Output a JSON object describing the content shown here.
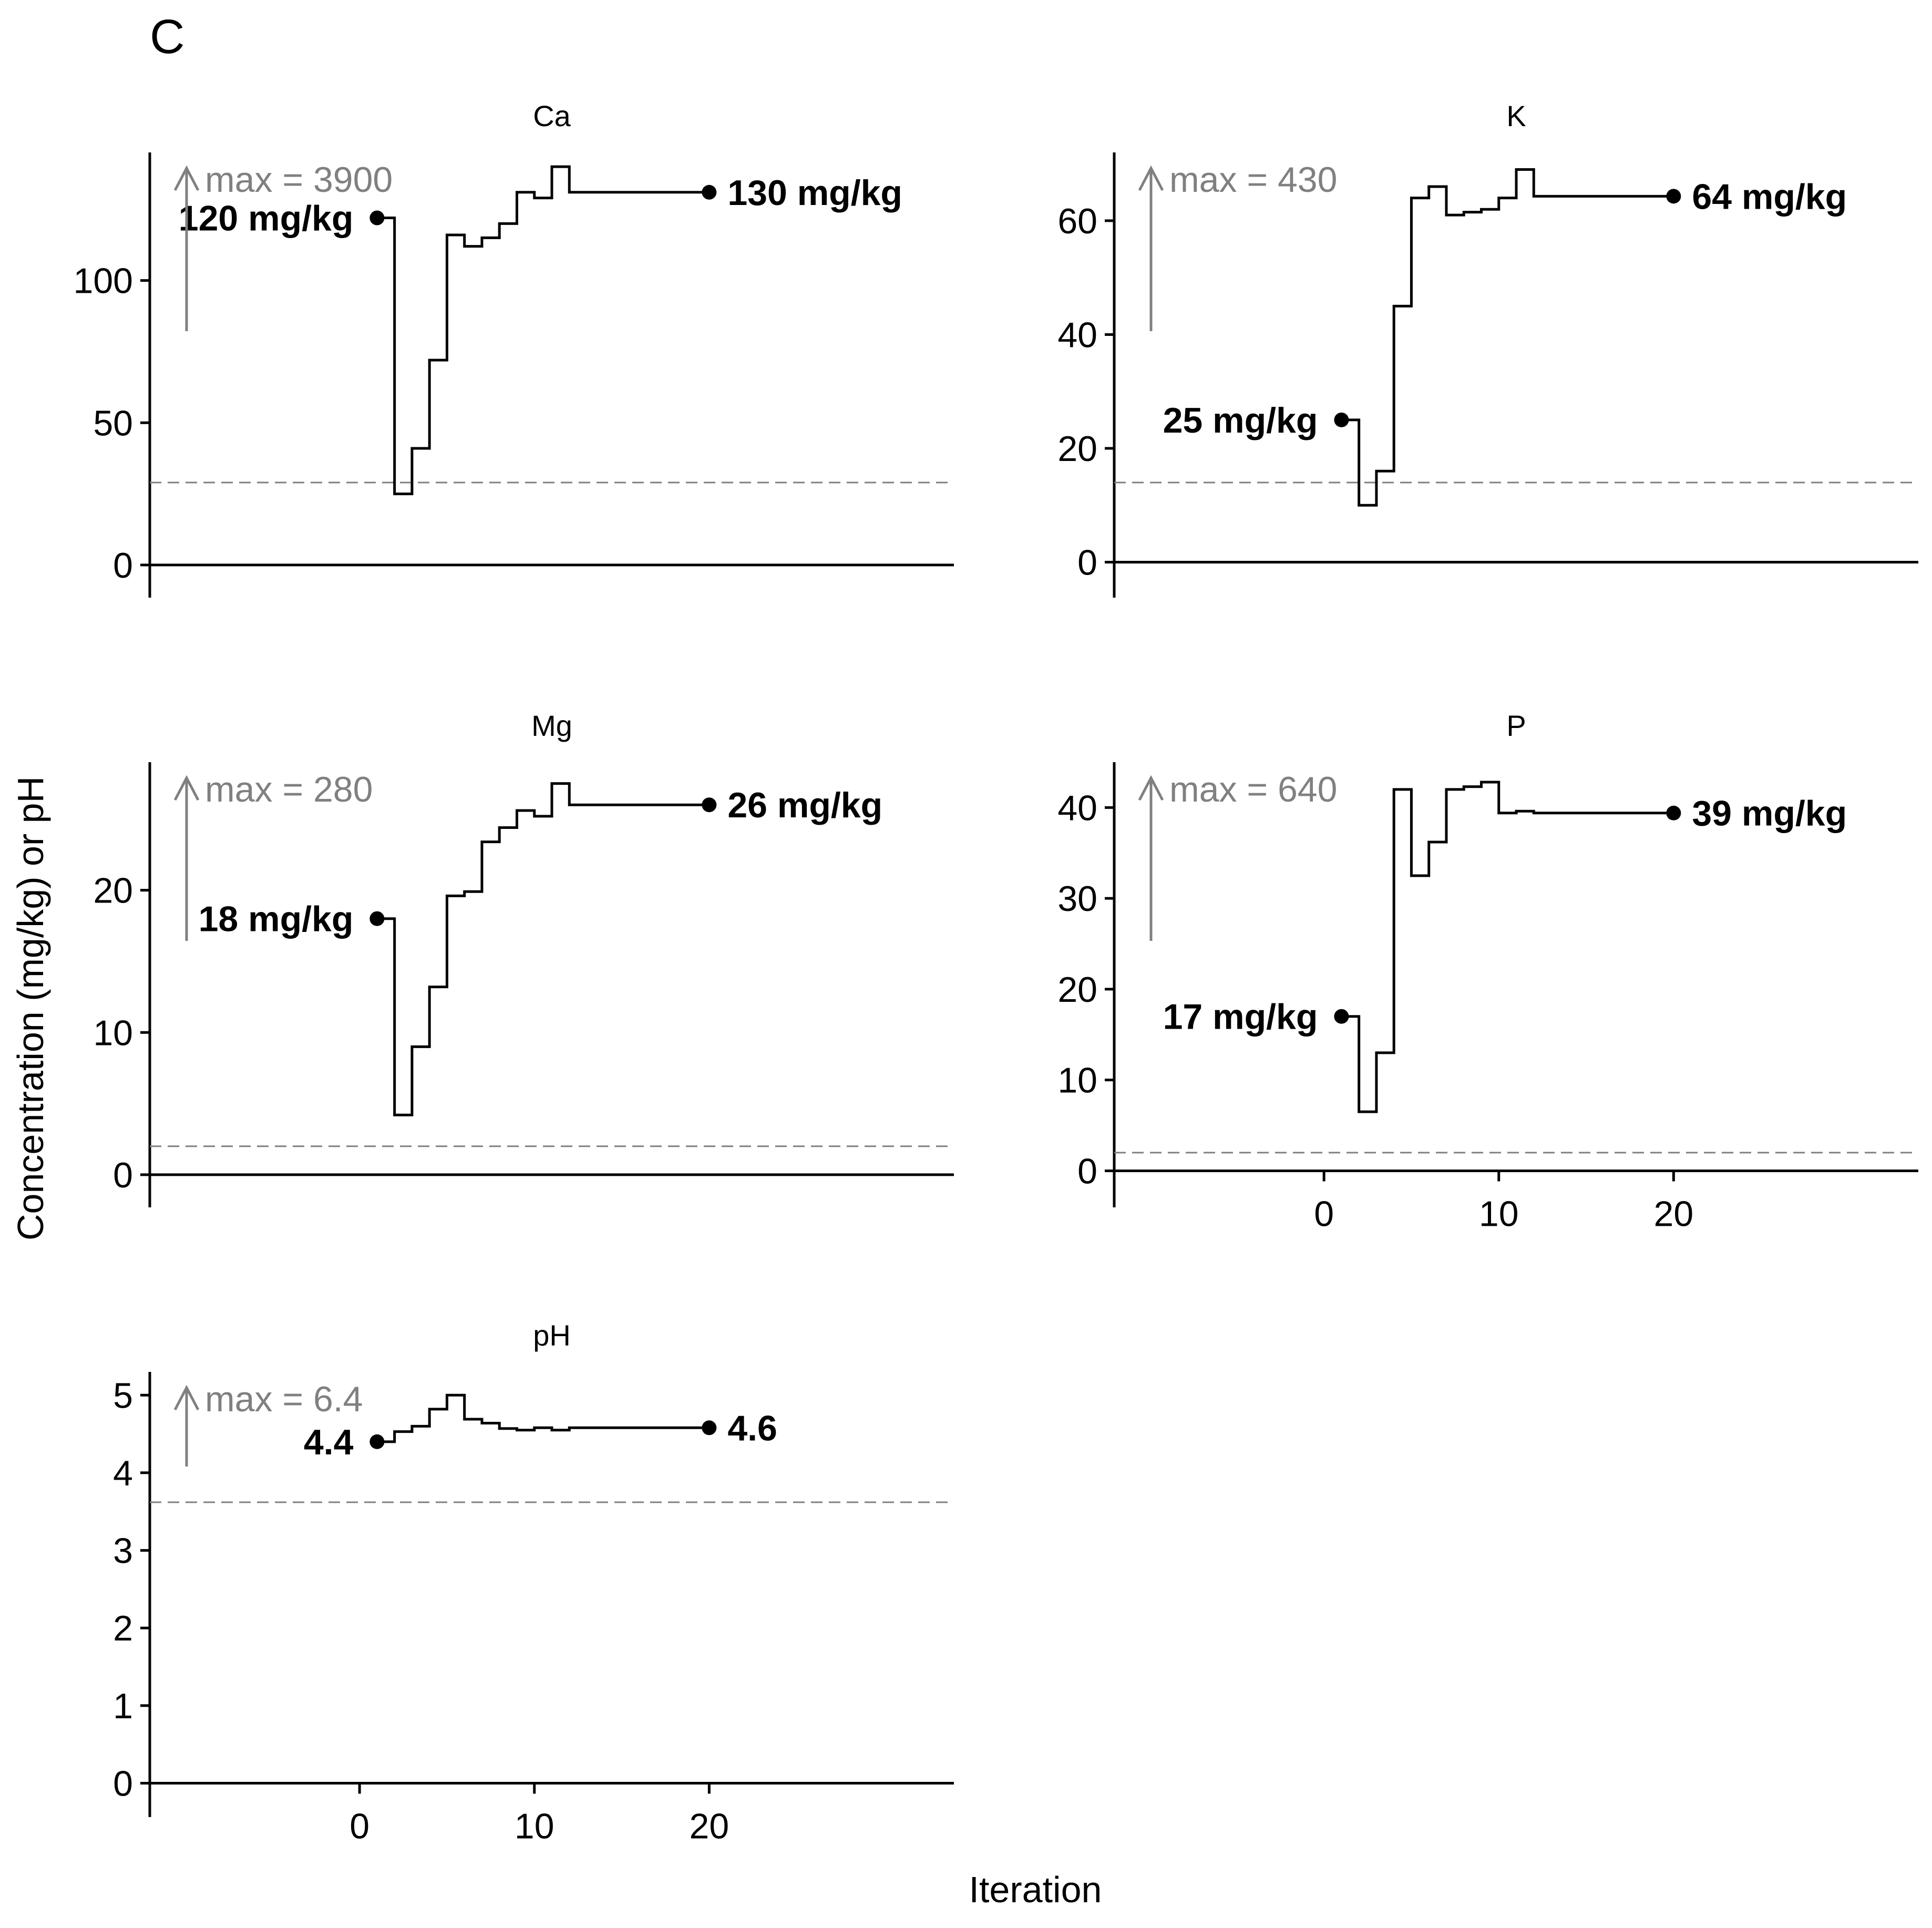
{
  "figure": {
    "panel_tag": "C",
    "ylabel": "Concentration (mg/kg) or pH",
    "xlabel": "Iteration"
  },
  "colors": {
    "line": "#000000",
    "annotation": "#808080",
    "reference": "#808080"
  },
  "chart_data": [
    {
      "type": "line",
      "step": true,
      "title": "Ca",
      "ylim": [
        -5,
        145
      ],
      "yticks": [
        0,
        50,
        100
      ],
      "xticks": [],
      "xlim": [
        -12,
        34
      ],
      "reference_line": 29,
      "max_annotation": "max = 3900",
      "x": [
        1,
        2,
        3,
        4,
        5,
        6,
        7,
        8,
        9,
        10,
        11,
        12,
        13,
        14,
        15,
        16,
        17,
        18,
        19,
        20
      ],
      "y": [
        122,
        25,
        41,
        72,
        116,
        112,
        115,
        120,
        131,
        129,
        140,
        131,
        131,
        131,
        131,
        131,
        131,
        131,
        131,
        131
      ],
      "start_label": "120 mg/kg",
      "end_label": "130 mg/kg"
    },
    {
      "type": "line",
      "step": true,
      "title": "K",
      "ylim": [
        -3,
        72
      ],
      "yticks": [
        0,
        20,
        40,
        60
      ],
      "xticks": [],
      "xlim": [
        -12,
        34
      ],
      "reference_line": 14,
      "max_annotation": "max = 430",
      "x": [
        1,
        2,
        3,
        4,
        5,
        6,
        7,
        8,
        9,
        10,
        11,
        12,
        13,
        14,
        15,
        16,
        17,
        18,
        19,
        20
      ],
      "y": [
        25,
        10,
        16,
        45,
        64,
        66,
        61,
        61.5,
        62,
        64,
        69,
        64.3,
        64.3,
        64.3,
        64.3,
        64.3,
        64.3,
        64.3,
        64.3,
        64.3
      ],
      "start_label": "25 mg/kg",
      "end_label": "64 mg/kg"
    },
    {
      "type": "line",
      "step": true,
      "title": "Mg",
      "ylim": [
        -1,
        29
      ],
      "yticks": [
        0,
        10,
        20
      ],
      "xticks": [],
      "xlim": [
        -12,
        34
      ],
      "reference_line": 2,
      "max_annotation": "max = 280",
      "x": [
        1,
        2,
        3,
        4,
        5,
        6,
        7,
        8,
        9,
        10,
        11,
        12,
        13,
        14,
        15,
        16,
        17,
        18,
        19,
        20
      ],
      "y": [
        18,
        4.2,
        9,
        13.2,
        19.6,
        19.9,
        23.4,
        24.4,
        25.6,
        25.2,
        27.5,
        26,
        26,
        26,
        26,
        26,
        26,
        26,
        26,
        26
      ],
      "start_label": "18 mg/kg",
      "end_label": "26 mg/kg"
    },
    {
      "type": "line",
      "step": true,
      "title": "P",
      "ylim": [
        -2,
        45
      ],
      "yticks": [
        0,
        10,
        20,
        30,
        40
      ],
      "xticks": [
        0,
        10,
        20
      ],
      "xlim": [
        -12,
        34
      ],
      "reference_line": 2,
      "max_annotation": "max = 640",
      "x": [
        1,
        2,
        3,
        4,
        5,
        6,
        7,
        8,
        9,
        10,
        11,
        12,
        13,
        14,
        15,
        16,
        17,
        18,
        19,
        20
      ],
      "y": [
        17,
        6.5,
        13,
        42,
        32.5,
        36.2,
        42,
        42.3,
        42.8,
        39.4,
        39.6,
        39.4,
        39.4,
        39.4,
        39.4,
        39.4,
        39.4,
        39.4,
        39.4,
        39.4
      ],
      "start_label": "17 mg/kg",
      "end_label": "39 mg/kg"
    },
    {
      "type": "line",
      "step": true,
      "title": "pH",
      "ylim": [
        -0.2,
        5.3
      ],
      "yticks": [
        0,
        1,
        2,
        3,
        4,
        5
      ],
      "xticks": [
        0,
        10,
        20
      ],
      "xlim": [
        -12,
        34
      ],
      "reference_line": 3.62,
      "max_annotation": "max = 6.4",
      "x": [
        1,
        2,
        3,
        4,
        5,
        6,
        7,
        8,
        9,
        10,
        11,
        12,
        13,
        14,
        15,
        16,
        17,
        18,
        19,
        20
      ],
      "y": [
        4.4,
        4.53,
        4.6,
        4.82,
        5.0,
        4.69,
        4.64,
        4.57,
        4.55,
        4.58,
        4.55,
        4.58,
        4.58,
        4.58,
        4.58,
        4.58,
        4.58,
        4.58,
        4.58,
        4.58
      ],
      "start_label": "4.4",
      "end_label": "4.6"
    }
  ]
}
